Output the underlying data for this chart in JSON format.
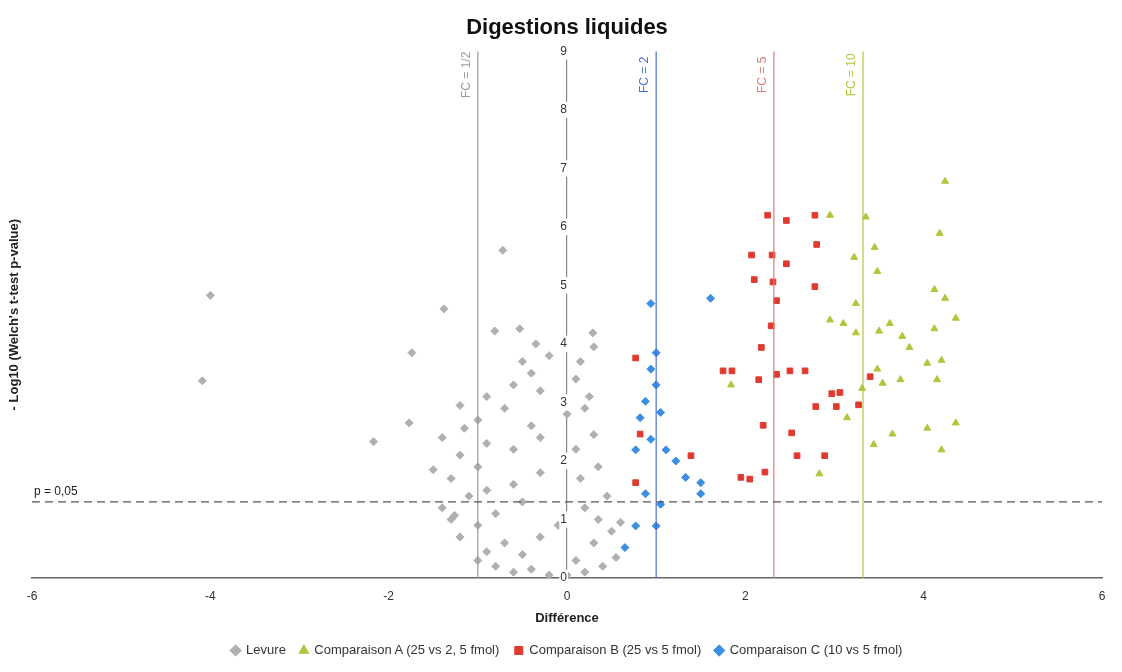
{
  "chart_data": {
    "type": "scatter",
    "title": "Digestions liquides",
    "xlabel": "Différence",
    "ylabel": "- Log10 (Welch's t-test p-value)",
    "xlim": [
      -6,
      6
    ],
    "xticks": [
      -6,
      -4,
      -2,
      0,
      2,
      4,
      6
    ],
    "ylim": [
      0,
      9
    ],
    "yticks": [
      0,
      1,
      2,
      3,
      4,
      5,
      6,
      7,
      8,
      9
    ],
    "grid": false,
    "legend": "bottom",
    "ref_lines": [
      {
        "axis": "x",
        "value": -1,
        "color": "#9a9a9a",
        "line_style": "solid"
      },
      {
        "axis": "x",
        "value": 1,
        "color": "#4a6fe0",
        "line_style": "solid"
      },
      {
        "axis": "x",
        "value": 2.32,
        "color": "#e07a7a",
        "line_style": "solid"
      },
      {
        "axis": "x",
        "value": 3.32,
        "color": "#b5c43c",
        "line_style": "solid"
      },
      {
        "axis": "y",
        "value": 1.3,
        "color": "#555555",
        "line_style": "dashed"
      }
    ],
    "annotations": [
      {
        "text": "FC = 1/2",
        "x": -1,
        "y": 8.6
      },
      {
        "text": "FC = 2",
        "x": 1,
        "y": 8.6
      },
      {
        "text": "FC = 5",
        "x": 2.32,
        "y": 8.6
      },
      {
        "text": "FC = 10",
        "x": 3.32,
        "y": 8.6
      },
      {
        "text": "p = 0,05",
        "x": -6,
        "y": 1.3
      }
    ],
    "series": [
      {
        "name": "Levure",
        "color": "#b0b0b0",
        "marker": "diamond",
        "x": [
          -1.0,
          -0.8,
          -0.6,
          -0.4,
          -0.2,
          0,
          0.2,
          0.4,
          0.55,
          -0.9,
          -0.5,
          0.1,
          -1.2,
          -1.0,
          -0.7,
          -0.3,
          0.3,
          0.5,
          0.6,
          -1.3,
          -0.1,
          -1.4,
          -1.1,
          -0.8,
          -0.5,
          0.2,
          0.45,
          -0.9,
          0.35,
          -1.3,
          -1.0,
          -0.6,
          -0.3,
          0.15,
          0.35,
          -1.5,
          -1.2,
          -0.9,
          -0.6,
          -0.3,
          0.1,
          0.3,
          -1.4,
          -1.0,
          -0.7,
          -0.4,
          0.0,
          0.2,
          -1.2,
          -0.9,
          -0.6,
          -0.3,
          0.1,
          0.25,
          -0.4,
          -0.5,
          -0.2,
          0.15,
          -0.35,
          0.3,
          -4.0,
          -4.09,
          -0.72,
          -1.38,
          -1.74,
          -2.17,
          -1.77,
          0.29,
          -0.53,
          -0.81,
          -1.15,
          -1.26
        ],
        "values": [
          0.3,
          0.2,
          0.1,
          0.15,
          0.05,
          0.05,
          0.1,
          0.2,
          0.35,
          0.45,
          0.4,
          0.3,
          0.7,
          0.9,
          0.6,
          0.7,
          0.6,
          0.8,
          0.95,
          1.0,
          0.9,
          1.2,
          1.4,
          1.1,
          1.3,
          1.2,
          1.4,
          1.5,
          1.0,
          1.7,
          1.9,
          1.6,
          1.8,
          1.7,
          1.9,
          1.85,
          2.1,
          2.3,
          2.2,
          2.4,
          2.2,
          2.45,
          2.4,
          2.7,
          2.9,
          2.6,
          2.8,
          2.9,
          2.95,
          3.1,
          3.3,
          3.2,
          3.4,
          3.1,
          3.5,
          3.7,
          3.8,
          3.7,
          4.0,
          3.95,
          4.83,
          3.37,
          5.6,
          4.6,
          3.85,
          2.33,
          2.65,
          4.19,
          4.26,
          4.22,
          2.56,
          1.07
        ]
      },
      {
        "name": "Comparaison A (25 vs 2, 5 fmol)",
        "color": "#b5c43c",
        "marker": "triangle",
        "x": [
          4.24,
          2.95,
          3.35,
          4.18,
          3.45,
          3.22,
          3.48,
          4.12,
          4.24,
          3.24,
          2.95,
          3.1,
          3.24,
          3.62,
          3.5,
          3.76,
          4.12,
          4.36,
          3.84,
          4.04,
          4.2,
          3.48,
          3.31,
          3.54,
          3.74,
          4.15,
          3.14,
          3.65,
          4.04,
          4.36,
          4.2,
          3.44,
          2.83,
          1.84
        ],
        "values": [
          6.78,
          6.2,
          6.17,
          5.89,
          5.65,
          5.48,
          5.24,
          4.93,
          4.78,
          4.69,
          4.41,
          4.35,
          4.19,
          4.35,
          4.22,
          4.13,
          4.26,
          4.44,
          3.94,
          3.67,
          3.72,
          3.57,
          3.24,
          3.33,
          3.39,
          3.39,
          2.74,
          2.46,
          2.56,
          2.65,
          2.19,
          2.28,
          1.78,
          3.3
        ]
      },
      {
        "name": "Comparaison B (25 vs 5 fmol)",
        "color": "#e03a2f",
        "marker": "square",
        "x": [
          2.25,
          2.46,
          2.78,
          2.8,
          2.07,
          2.3,
          2.46,
          2.1,
          2.31,
          2.78,
          2.35,
          2.29,
          2.18,
          0.77,
          1.75,
          1.85,
          2.15,
          2.35,
          2.5,
          2.67,
          3.4,
          2.97,
          3.06,
          3.02,
          2.79,
          3.27,
          2.2,
          2.52,
          2.89,
          2.58,
          2.22,
          2.05,
          1.39,
          0.82,
          0.77,
          1.95
        ],
        "values": [
          6.2,
          6.11,
          6.2,
          5.7,
          5.52,
          5.52,
          5.37,
          5.1,
          5.06,
          4.98,
          4.74,
          4.31,
          3.94,
          3.76,
          3.54,
          3.54,
          3.39,
          3.48,
          3.54,
          3.54,
          3.44,
          3.15,
          3.17,
          2.93,
          2.93,
          2.96,
          2.61,
          2.48,
          2.09,
          2.09,
          1.81,
          1.69,
          2.09,
          2.46,
          1.63,
          1.72
        ]
      },
      {
        "name": "Comparaison C (10 vs 5 fmol)",
        "color": "#3b8fe0",
        "marker": "diamond",
        "x": [
          0.94,
          0.94,
          1.0,
          0.88,
          1.05,
          0.94,
          0.77,
          1.11,
          1.22,
          1.33,
          1.5,
          1.5,
          1.05,
          0.77,
          0.65,
          1.61,
          1.0,
          0,
          0.88,
          1.0,
          0.82
        ],
        "values": [
          4.69,
          3.57,
          3.3,
          3.02,
          2.83,
          2.37,
          2.19,
          2.19,
          2.0,
          1.72,
          1.44,
          1.63,
          1.26,
          0.89,
          0.52,
          4.78,
          0.89,
          0.0,
          1.44,
          3.85,
          2.74
        ]
      }
    ]
  }
}
